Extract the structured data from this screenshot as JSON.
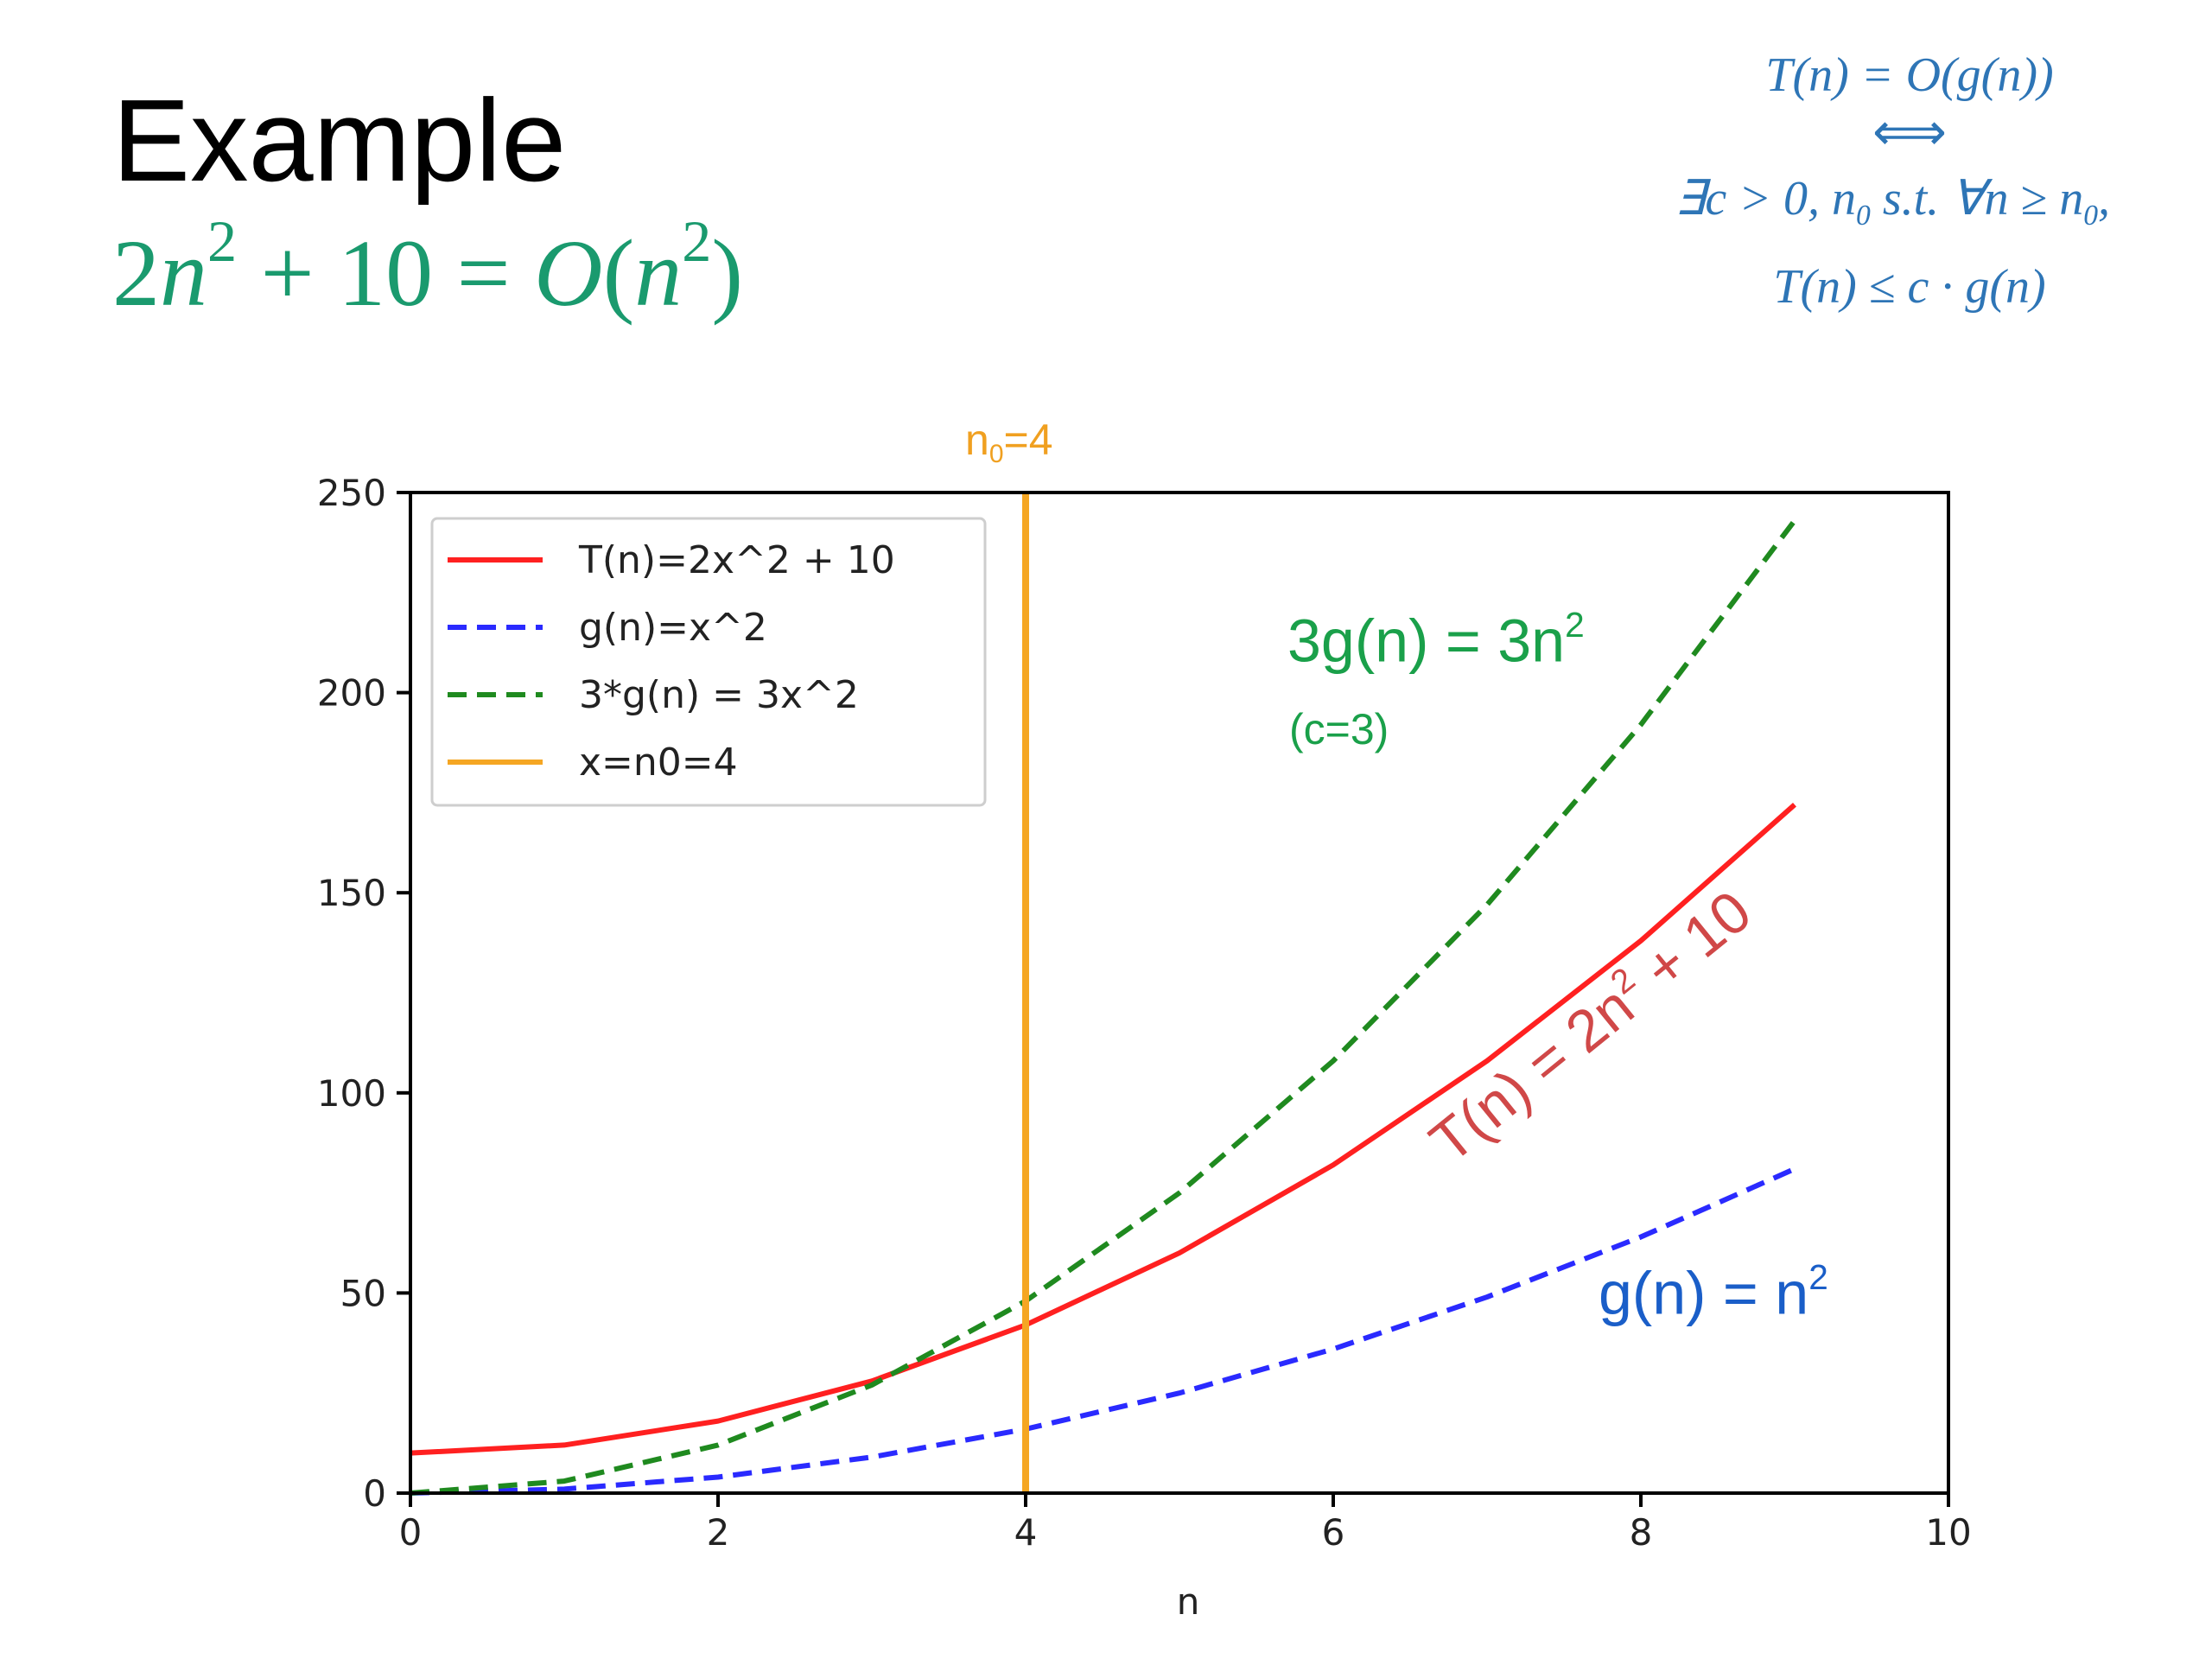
{
  "title": "Example",
  "subtitle": {
    "lhs_coef": "2",
    "lhs_var": "n",
    "lhs_exp": "2",
    "lhs_rest": " + 10 = ",
    "rhs_O": "O",
    "rhs_open": "(",
    "rhs_var": "n",
    "rhs_exp": "2",
    "rhs_close": ")"
  },
  "definition": {
    "line1": "T(n) = O(g(n))",
    "line2": "⟺",
    "line3_a": "∃c > 0, n",
    "line3_sub": "0",
    "line3_b": "  s.t.  ∀n ≥ n",
    "line3_sub2": "0",
    "line3_c": ",",
    "line4": "T(n) ≤ c · g(n)"
  },
  "annotations": {
    "three_g_a": "3g(n) = 3n",
    "three_g_exp": "2",
    "c_note": "(c=3)",
    "t_a": "T(n) = 2n",
    "t_exp": "2",
    "t_b": " + 10",
    "g_a": "g(n) = n",
    "g_exp": "2",
    "n0_a": "n",
    "n0_sub": "0",
    "n0_b": "=4"
  },
  "colors": {
    "t_series": "#ff2020",
    "g_series": "#2a2aff",
    "three_g_series": "#1f8a1f",
    "vline": "#f5a623",
    "subtitle": "#1a9a6e",
    "definition": "#2e75b6"
  },
  "chart_data": {
    "type": "line",
    "xlabel": "n",
    "ylabel": "",
    "xlim": [
      0,
      10
    ],
    "ylim": [
      0,
      250
    ],
    "x_ticks": [
      0,
      2,
      4,
      6,
      8,
      10
    ],
    "y_ticks": [
      0,
      50,
      100,
      150,
      200,
      250
    ],
    "x": [
      0,
      1,
      2,
      3,
      4,
      5,
      6,
      7,
      8,
      9
    ],
    "series": [
      {
        "name": "T(n)=2x^2 + 10",
        "values": [
          10,
          12,
          18,
          28,
          42,
          60,
          82,
          108,
          138,
          172
        ],
        "style": "solid",
        "color": "#ff2020"
      },
      {
        "name": "g(n)=x^2",
        "values": [
          0,
          1,
          4,
          9,
          16,
          25,
          36,
          49,
          64,
          81
        ],
        "style": "dashed",
        "color": "#2a2aff"
      },
      {
        "name": "3*g(n) = 3x^2",
        "values": [
          0,
          3,
          12,
          27,
          48,
          75,
          108,
          147,
          192,
          243
        ],
        "style": "dashed",
        "color": "#1f8a1f"
      }
    ],
    "vline": {
      "name": "x=n0=4",
      "x": 4,
      "color": "#f5a623"
    },
    "legend_position": "upper-left"
  }
}
